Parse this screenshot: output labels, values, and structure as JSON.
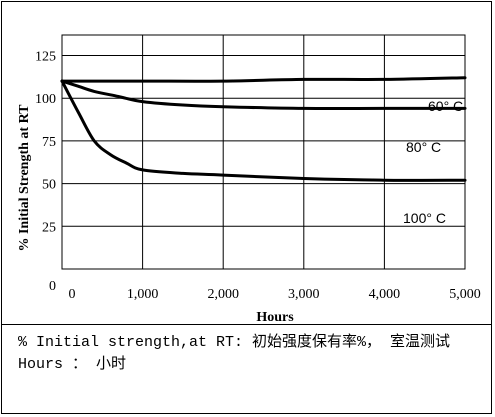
{
  "chart_data": {
    "type": "line",
    "title": "",
    "xlabel": "Hours",
    "ylabel": "% Initial Strength at RT",
    "xlim": [
      0,
      5000
    ],
    "ylim": [
      0,
      137
    ],
    "xticks": [
      0,
      1000,
      2000,
      3000,
      4000,
      5000
    ],
    "xtick_labels": [
      "0",
      "1,000",
      "2,000",
      "3,000",
      "4,000",
      "5,000"
    ],
    "yticks": [
      0,
      25,
      50,
      75,
      100,
      125
    ],
    "ytick_labels": [
      "0",
      "25",
      "50",
      "75",
      "100",
      "125"
    ],
    "grid": true,
    "series": [
      {
        "name": "60° C",
        "x": [
          0,
          1000,
          2000,
          3000,
          4000,
          5000
        ],
        "y": [
          110,
          110,
          110,
          111,
          111,
          112
        ]
      },
      {
        "name": "80° C",
        "x": [
          0,
          200,
          400,
          700,
          1000,
          1500,
          2000,
          3000,
          4000,
          5000
        ],
        "y": [
          110,
          107,
          104,
          101,
          98,
          96,
          95,
          94,
          94,
          94
        ]
      },
      {
        "name": "100° C",
        "x": [
          0,
          200,
          400,
          600,
          800,
          1000,
          1500,
          2000,
          3000,
          4000,
          5000
        ],
        "y": [
          110,
          92,
          75,
          67,
          62,
          58,
          56,
          55,
          53,
          52,
          52
        ]
      }
    ]
  },
  "legend": {
    "line1": "% Initial strength,at RT: 初始强度保有率%， 室温测试",
    "line2": "Hours ： 小时"
  }
}
